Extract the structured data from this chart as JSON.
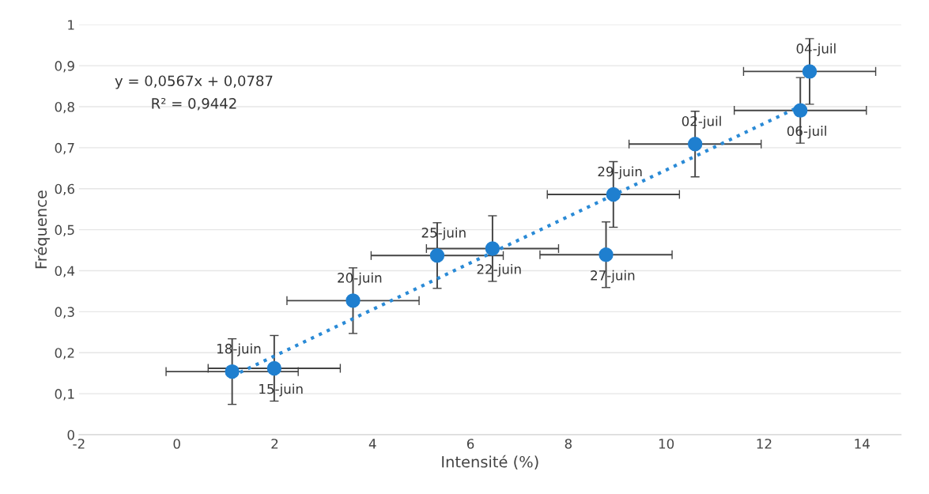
{
  "chart_data": {
    "type": "scatter",
    "xlabel": "Intensité (%)",
    "ylabel": "Fréquence",
    "xlim": [
      -2,
      14.8
    ],
    "xticks": [
      -2,
      0,
      2,
      4,
      6,
      8,
      10,
      12,
      14
    ],
    "ylim": [
      0,
      1
    ],
    "yticks": [
      0,
      {
        "value": 0.1,
        "label": "0,1"
      },
      {
        "value": 0.2,
        "label": "0,2"
      },
      {
        "value": 0.3,
        "label": "0,3"
      },
      {
        "value": 0.4,
        "label": "0,4"
      },
      {
        "value": 0.5,
        "label": "0,5"
      },
      {
        "value": 0.6,
        "label": "0,6"
      },
      {
        "value": 0.7,
        "label": "0,7"
      },
      {
        "value": 0.8,
        "label": "0,8"
      },
      {
        "value": 0.9,
        "label": "0,9"
      },
      1
    ],
    "grid": "y",
    "marker": "circle",
    "annotations": [
      "y = 0,0567x + 0,0787",
      "R² = 0,9442",
      {
        "text": "18-juin",
        "x": 1.13,
        "y": 0.154
      },
      {
        "text": "15-juin",
        "x": 1.99,
        "y": 0.162
      },
      {
        "text": "20-juin",
        "x": 3.6,
        "y": 0.327
      },
      {
        "text": "25-juin",
        "x": 5.32,
        "y": 0.437
      },
      {
        "text": "22-juin",
        "x": 6.45,
        "y": 0.454
      },
      {
        "text": "29-juin",
        "x": 8.92,
        "y": 0.586
      },
      {
        "text": "27-juin",
        "x": 8.77,
        "y": 0.439
      },
      {
        "text": "02-juil",
        "x": 10.59,
        "y": 0.709
      },
      {
        "text": "04-juil",
        "x": 12.93,
        "y": 0.886
      },
      {
        "text": "06-juil",
        "x": 12.74,
        "y": 0.791
      }
    ],
    "series": [
      {
        "color": "#1f7fcf",
        "x": [
          1.13,
          1.99,
          3.6,
          5.32,
          6.45,
          8.92,
          8.77,
          10.59,
          12.93,
          12.74
        ],
        "values": [
          0.154,
          0.162,
          0.327,
          0.437,
          0.454,
          0.586,
          0.439,
          0.709,
          0.886,
          0.791
        ],
        "errors": [
          0.08,
          0.08,
          0.08,
          0.08,
          0.08,
          0.08,
          0.08,
          0.08,
          0.08,
          0.08
        ],
        "xerrors": [
          1.35,
          1.35,
          1.35,
          1.35,
          1.35,
          1.35,
          1.35,
          1.35,
          1.35,
          1.35
        ]
      },
      {
        "type": "line",
        "color": "#2a8ad6",
        "line_style": "dotted",
        "marker": "none",
        "x": [
          1.13,
          12.74
        ],
        "values": [
          0.143,
          0.801
        ]
      }
    ]
  }
}
